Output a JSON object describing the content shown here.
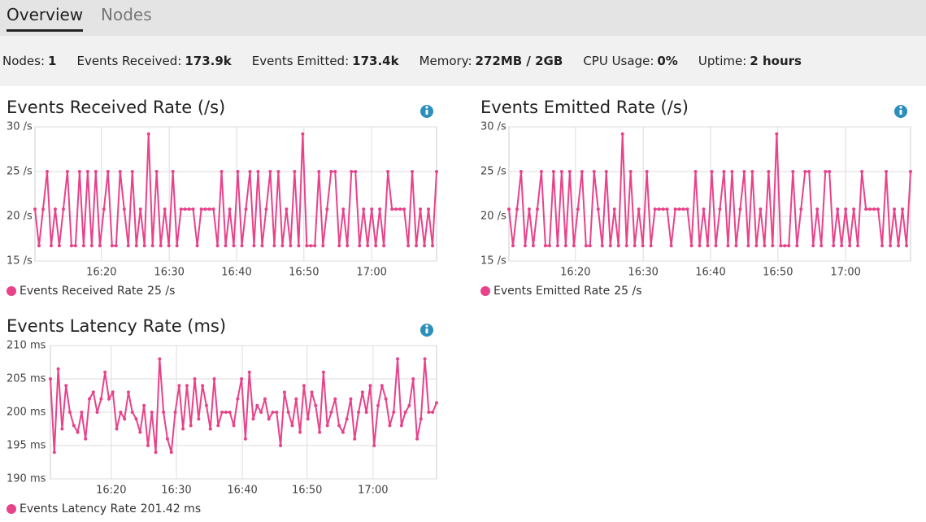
{
  "tabs": [
    "Overview",
    "Nodes"
  ],
  "stats": [
    {
      "label": "Nodes:",
      "value": 1
    },
    {
      "label": "Events Received:",
      "value": "173.9k"
    },
    {
      "label": "Events Emitted:",
      "value": "173.4k"
    },
    {
      "label": "Memory:",
      "value": "272MB / 2GB"
    },
    {
      "label": "CPU Usage:",
      "value": "0%"
    },
    {
      "label": "Uptime:",
      "value": "2 hours"
    }
  ],
  "chart_data": [
    {
      "type": "line",
      "title": "Events Received Rate (/s)",
      "series": [
        {
          "name": "Events Received Rate",
          "current_label": "25 /s",
          "color": "#e8428a",
          "values": [
            20.8,
            16.7,
            20.8,
            25,
            16.7,
            20.8,
            16.7,
            20.8,
            25,
            16.7,
            16.7,
            25,
            16.7,
            25,
            16.7,
            25,
            16.7,
            20.8,
            25,
            16.7,
            16.7,
            25,
            20.8,
            16.7,
            25,
            16.7,
            20.8,
            16.7,
            29.2,
            16.7,
            25,
            16.7,
            20.8,
            16.7,
            25,
            16.7,
            20.8,
            20.8,
            20.8,
            20.8,
            16.7,
            20.8,
            20.8,
            20.8,
            20.8,
            16.7,
            25,
            16.7,
            20.8,
            16.7,
            25,
            16.7,
            20.8,
            25,
            16.7,
            25,
            16.7,
            20.8,
            25,
            16.7,
            25,
            16.7,
            20.8,
            16.7,
            25,
            16.7,
            29.2,
            16.7,
            16.7,
            16.7,
            25,
            16.7,
            20.8,
            25,
            25,
            16.7,
            20.8,
            16.7,
            25,
            25,
            16.7,
            20.8,
            16.7,
            20.8,
            16.7,
            20.8,
            16.7,
            25,
            20.8,
            20.8,
            20.8,
            20.8,
            16.7,
            25,
            16.7,
            20.8,
            16.7,
            20.8,
            16.7,
            25
          ]
        }
      ],
      "xlim": [
        0,
        99
      ],
      "xticks": [
        {
          "value": 16.4,
          "label": "16:20"
        },
        {
          "value": 33.1,
          "label": "16:30"
        },
        {
          "value": 49.7,
          "label": "16:40"
        },
        {
          "value": 66.3,
          "label": "16:50"
        },
        {
          "value": 83.0,
          "label": "17:00"
        }
      ],
      "ylim": [
        15,
        30
      ],
      "yticks": [
        {
          "value": 15,
          "label": "15 /s"
        },
        {
          "value": 20,
          "label": "20 /s"
        },
        {
          "value": 25,
          "label": "25 /s"
        },
        {
          "value": 30,
          "label": "30 /s"
        }
      ],
      "grid": true
    },
    {
      "type": "line",
      "title": "Events Emitted Rate (/s)",
      "series": [
        {
          "name": "Events Emitted Rate",
          "current_label": "25 /s",
          "color": "#e8428a",
          "values": [
            20.8,
            16.7,
            20.8,
            25,
            16.7,
            20.8,
            16.7,
            20.8,
            25,
            16.7,
            16.7,
            25,
            16.7,
            25,
            16.7,
            25,
            16.7,
            20.8,
            25,
            16.7,
            16.7,
            25,
            20.8,
            16.7,
            25,
            16.7,
            20.8,
            16.7,
            29.2,
            16.7,
            25,
            16.7,
            20.8,
            16.7,
            25,
            16.7,
            20.8,
            20.8,
            20.8,
            20.8,
            16.7,
            20.8,
            20.8,
            20.8,
            20.8,
            16.7,
            25,
            16.7,
            20.8,
            16.7,
            25,
            16.7,
            20.8,
            25,
            16.7,
            25,
            16.7,
            20.8,
            25,
            16.7,
            25,
            16.7,
            20.8,
            16.7,
            25,
            16.7,
            29.2,
            16.7,
            16.7,
            16.7,
            25,
            16.7,
            20.8,
            25,
            25,
            16.7,
            20.8,
            16.7,
            25,
            25,
            16.7,
            20.8,
            16.7,
            20.8,
            16.7,
            20.8,
            16.7,
            25,
            20.8,
            20.8,
            20.8,
            20.8,
            16.7,
            25,
            16.7,
            20.8,
            16.7,
            20.8,
            16.7,
            25
          ]
        }
      ],
      "xlim": [
        0,
        99
      ],
      "xticks": [
        {
          "value": 16.4,
          "label": "16:20"
        },
        {
          "value": 33.1,
          "label": "16:30"
        },
        {
          "value": 49.7,
          "label": "16:40"
        },
        {
          "value": 66.3,
          "label": "16:50"
        },
        {
          "value": 83.0,
          "label": "17:00"
        }
      ],
      "ylim": [
        15,
        30
      ],
      "yticks": [
        {
          "value": 15,
          "label": "15 /s"
        },
        {
          "value": 20,
          "label": "20 /s"
        },
        {
          "value": 25,
          "label": "25 /s"
        },
        {
          "value": 30,
          "label": "30 /s"
        }
      ],
      "grid": true
    },
    {
      "type": "line",
      "title": "Events Latency Rate (ms)",
      "series": [
        {
          "name": "Events Latency Rate",
          "current_label": "201.42 ms",
          "color": "#e8428a",
          "values": [
            205,
            194,
            206.5,
            197.5,
            204,
            200,
            198,
            197,
            200,
            196,
            202,
            203,
            200,
            202,
            206,
            202,
            203,
            197.5,
            200,
            199,
            203,
            200,
            199,
            197,
            201,
            195,
            200,
            194,
            208,
            200,
            196,
            194,
            200,
            204,
            197.5,
            204,
            198,
            205,
            199,
            204,
            201,
            197.5,
            205,
            198,
            200,
            200,
            200,
            198,
            202,
            205,
            196,
            206,
            199,
            201,
            200,
            202,
            199,
            200,
            200,
            195,
            203,
            200,
            198,
            202,
            197,
            204,
            199,
            203,
            201,
            197,
            206,
            198,
            200,
            202,
            198,
            197,
            199,
            202,
            196,
            200,
            203,
            200,
            204,
            195,
            201,
            204,
            202,
            198,
            200,
            208,
            198,
            200,
            201,
            205,
            196,
            199,
            208,
            200,
            200,
            201.42
          ]
        }
      ],
      "xlim": [
        0,
        99
      ],
      "xticks": [
        {
          "value": 15.6,
          "label": "16:20"
        },
        {
          "value": 32.3,
          "label": "16:30"
        },
        {
          "value": 49.2,
          "label": "16:40"
        },
        {
          "value": 65.8,
          "label": "16:50"
        },
        {
          "value": 82.7,
          "label": "17:00"
        }
      ],
      "ylim": [
        190,
        210
      ],
      "yticks": [
        {
          "value": 190,
          "label": "190 ms"
        },
        {
          "value": 195,
          "label": "195 ms"
        },
        {
          "value": 200,
          "label": "200 ms"
        },
        {
          "value": 205,
          "label": "205 ms"
        },
        {
          "value": 210,
          "label": "210 ms"
        }
      ],
      "grid": true
    }
  ]
}
